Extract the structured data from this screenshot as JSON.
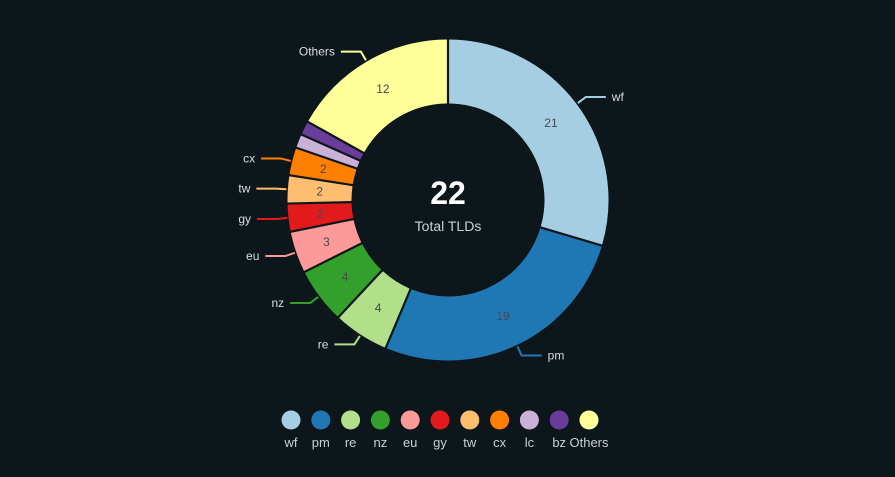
{
  "chart_data": {
    "type": "pie",
    "variant": "donut",
    "center": {
      "total": "22",
      "caption": "Total TLDs"
    },
    "slices": [
      {
        "label": "wf",
        "value": 21,
        "color": "#a6cee3",
        "show_value": true,
        "show_callout": true
      },
      {
        "label": "pm",
        "value": 19,
        "color": "#1f78b4",
        "show_value": true,
        "show_callout": true
      },
      {
        "label": "re",
        "value": 4,
        "color": "#b2df8a",
        "show_value": true,
        "show_callout": true
      },
      {
        "label": "nz",
        "value": 4,
        "color": "#33a02c",
        "show_value": true,
        "show_callout": true
      },
      {
        "label": "eu",
        "value": 3,
        "color": "#fb9a99",
        "show_value": true,
        "show_callout": true
      },
      {
        "label": "gy",
        "value": 2,
        "color": "#e31a1c",
        "show_value": true,
        "show_callout": true
      },
      {
        "label": "tw",
        "value": 2,
        "color": "#fdbf6f",
        "show_value": true,
        "show_callout": true
      },
      {
        "label": "cx",
        "value": 2,
        "color": "#ff7f00",
        "show_value": true,
        "show_callout": true
      },
      {
        "label": "lc",
        "value": 1,
        "color": "#cab2d6",
        "show_value": false,
        "show_callout": false
      },
      {
        "label": "bz",
        "value": 1,
        "color": "#6a3d9a",
        "show_value": false,
        "show_callout": false
      },
      {
        "label": "Others",
        "value": 12,
        "color": "#ffff99",
        "show_value": true,
        "show_callout": true
      }
    ],
    "legend": {
      "position": "bottom",
      "items": [
        "wf",
        "pm",
        "re",
        "nz",
        "eu",
        "gy",
        "tw",
        "cx",
        "lc",
        "bz",
        "Others"
      ]
    }
  },
  "colors": {
    "background": "#0d161b",
    "slice_border": "#0d161b"
  }
}
